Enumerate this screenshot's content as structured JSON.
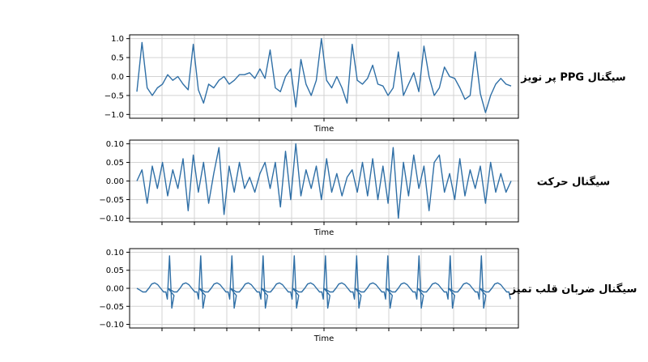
{
  "chart_data": [
    {
      "type": "line",
      "title": "",
      "side_label": "سیگنال PPG پر نویز",
      "xlabel": "Time",
      "ylabel": "",
      "ylim": [
        -1.1,
        1.1
      ],
      "yticks": [
        1.0,
        0.5,
        0.0,
        -0.5,
        -1.0
      ],
      "ytick_labels": [
        "1.0",
        "0.5",
        "0.0",
        "−0.5",
        "−1.0"
      ],
      "grid": true,
      "color": "#2f6fa6",
      "series": [
        {
          "x": [
            0,
            6,
            12,
            18,
            24,
            30,
            36,
            42,
            48,
            54,
            60,
            66,
            72,
            78,
            84,
            90,
            96,
            102,
            108,
            114,
            120,
            126,
            132,
            138,
            144,
            150,
            156,
            162,
            168,
            174,
            180,
            186,
            192,
            198,
            204,
            210,
            216,
            222,
            228,
            234,
            240,
            246,
            252,
            258,
            264,
            270,
            276,
            282,
            288,
            294,
            300,
            306,
            312,
            318,
            324,
            330,
            336,
            342,
            348,
            354,
            360,
            366,
            372,
            378,
            384,
            390,
            396,
            402,
            408,
            414,
            420,
            426,
            432,
            438
          ],
          "values": [
            -0.4,
            0.9,
            -0.3,
            -0.5,
            -0.3,
            -0.2,
            0.05,
            -0.1,
            0.0,
            -0.2,
            -0.35,
            0.85,
            -0.35,
            -0.7,
            -0.2,
            -0.3,
            -0.1,
            0.0,
            -0.2,
            -0.1,
            0.05,
            0.05,
            0.1,
            -0.05,
            0.2,
            -0.05,
            0.7,
            -0.3,
            -0.4,
            0.0,
            0.2,
            -0.8,
            0.45,
            -0.2,
            -0.5,
            -0.1,
            1.0,
            -0.1,
            -0.3,
            0.0,
            -0.3,
            -0.7,
            0.85,
            -0.1,
            -0.2,
            -0.05,
            0.3,
            -0.2,
            -0.25,
            -0.5,
            -0.3,
            0.65,
            -0.5,
            -0.2,
            0.1,
            -0.4,
            0.8,
            0.0,
            -0.5,
            -0.3,
            0.25,
            0.0,
            -0.05,
            -0.3,
            -0.6,
            -0.5,
            0.65,
            -0.45,
            -0.95,
            -0.5,
            -0.2,
            -0.05,
            -0.2,
            -0.25
          ]
        }
      ]
    },
    {
      "type": "line",
      "title": "",
      "side_label": "سیگنال حرکت",
      "xlabel": "Time",
      "ylabel": "",
      "ylim": [
        -0.11,
        0.11
      ],
      "yticks": [
        0.1,
        0.05,
        0.0,
        -0.05,
        -0.1
      ],
      "ytick_labels": [
        "0.10",
        "0.05",
        "0.00",
        "−0.05",
        "−0.10"
      ],
      "grid": true,
      "color": "#2f6fa6",
      "series": [
        {
          "x": [
            0,
            6,
            12,
            18,
            24,
            30,
            36,
            42,
            48,
            54,
            60,
            66,
            72,
            78,
            84,
            90,
            96,
            102,
            108,
            114,
            120,
            126,
            132,
            138,
            144,
            150,
            156,
            162,
            168,
            174,
            180,
            186,
            192,
            198,
            204,
            210,
            216,
            222,
            228,
            234,
            240,
            246,
            252,
            258,
            264,
            270,
            276,
            282,
            288,
            294,
            300,
            306,
            312,
            318,
            324,
            330,
            336,
            342,
            348,
            354,
            360,
            366,
            372,
            378,
            384,
            390,
            396,
            402,
            408,
            414,
            420,
            426,
            432,
            438
          ],
          "values": [
            0.0,
            0.03,
            -0.06,
            0.04,
            -0.02,
            0.05,
            -0.04,
            0.03,
            -0.02,
            0.06,
            -0.08,
            0.07,
            -0.03,
            0.05,
            -0.06,
            0.02,
            0.09,
            -0.09,
            0.04,
            -0.03,
            0.05,
            -0.02,
            0.01,
            -0.03,
            0.02,
            0.05,
            -0.02,
            0.05,
            -0.07,
            0.08,
            -0.05,
            0.1,
            -0.04,
            0.03,
            -0.02,
            0.04,
            -0.05,
            0.06,
            -0.03,
            0.02,
            -0.04,
            0.01,
            0.03,
            -0.03,
            0.05,
            -0.04,
            0.06,
            -0.05,
            0.04,
            -0.06,
            0.09,
            -0.1,
            0.05,
            -0.04,
            0.07,
            -0.02,
            0.04,
            -0.08,
            0.05,
            0.07,
            -0.03,
            0.02,
            -0.05,
            0.06,
            -0.04,
            0.03,
            -0.02,
            0.04,
            -0.06,
            0.05,
            -0.03,
            0.02,
            -0.03,
            0.0
          ]
        }
      ]
    },
    {
      "type": "line",
      "title": "",
      "side_label": "سیگنال ضربان قلب تمیز",
      "xlabel": "Time",
      "ylabel": "",
      "ylim": [
        -0.11,
        0.11
      ],
      "yticks": [
        0.1,
        0.05,
        0.0,
        -0.05,
        -0.1
      ],
      "ytick_labels": [
        "0.10",
        "0.05",
        "0.00",
        "−0.05",
        "−0.10"
      ],
      "grid": true,
      "color": "#2f6fa6",
      "beat_period": 42,
      "beat_count": 12,
      "beat_template": {
        "offsets": [
          0,
          4,
          8,
          12,
          16,
          20,
          24,
          28,
          32,
          36,
          39,
          41,
          44,
          47,
          50
        ],
        "values": [
          0.0,
          -0.005,
          -0.01,
          -0.01,
          0.0,
          0.012,
          0.015,
          0.01,
          0.0,
          -0.01,
          -0.01,
          -0.03,
          0.09,
          -0.055,
          -0.02
        ]
      }
    }
  ]
}
